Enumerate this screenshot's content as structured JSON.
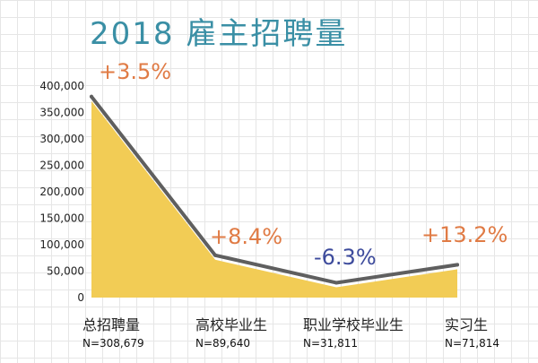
{
  "title": "2018 雇主招聘量",
  "chart_data": {
    "type": "area",
    "title": "2018 雇主招聘量",
    "categories": [
      "总招聘量",
      "高校毕业生",
      "职业学校毕业生",
      "实习生"
    ],
    "sample_sizes": [
      "N=308,679",
      "N=89,640",
      "N=31,811",
      "N=71,814"
    ],
    "values": [
      380000,
      80000,
      28000,
      62000
    ],
    "changes": [
      "+3.5%",
      "+8.4%",
      "-6.3%",
      "+13.2%"
    ],
    "change_colors": [
      "#e07b45",
      "#e07b45",
      "#3d4b9c",
      "#e07b45"
    ],
    "y_ticks": [
      0,
      50000,
      100000,
      150000,
      200000,
      250000,
      300000,
      350000,
      400000
    ],
    "y_tick_labels": [
      "0",
      "50,000",
      "100,000",
      "150,000",
      "200,000",
      "250,000",
      "300,000",
      "350,000",
      "400,000"
    ],
    "ylim": [
      0,
      400000
    ],
    "grid": true,
    "colors": {
      "fill": "#f2cc55",
      "line": "#5f5f5f",
      "title": "#3a8fa5"
    }
  }
}
